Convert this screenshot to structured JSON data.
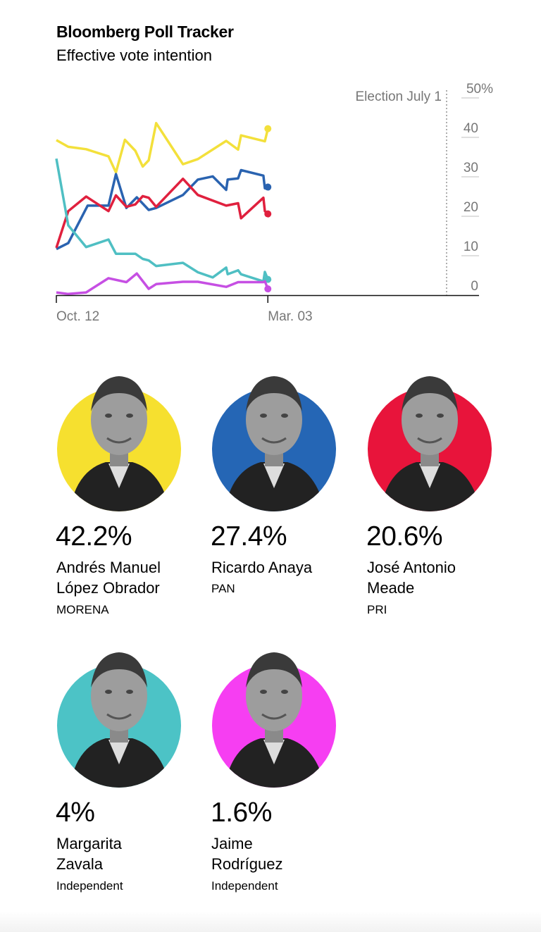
{
  "header": {
    "title": "Bloomberg Poll Tracker",
    "subtitle": "Effective vote intention"
  },
  "chart_data": {
    "type": "line",
    "title": "Bloomberg Poll Tracker",
    "subtitle": "Effective vote intention",
    "xlabel": "",
    "ylabel": "",
    "x_tick_labels": [
      "Oct. 12",
      "Mar. 03"
    ],
    "x_ticks": [
      "2017-10-12",
      "2018-03-03"
    ],
    "xlim": [
      "2017-10-12",
      "2018-07-01"
    ],
    "y_tick_labels": [
      "0",
      "10",
      "20",
      "30",
      "40",
      "50%"
    ],
    "ylim": [
      0,
      50
    ],
    "grid": false,
    "annotation": {
      "label": "Election July 1",
      "date": "2018-07-01"
    },
    "series": [
      {
        "color": "#f3e03b",
        "points": [
          [
            "2017-10-12",
            39.3
          ],
          [
            "2017-10-20",
            37.6
          ],
          [
            "2017-11-01",
            37.0
          ],
          [
            "2017-11-16",
            35.2
          ],
          [
            "2017-11-21",
            31.1
          ],
          [
            "2017-11-27",
            39.4
          ],
          [
            "2017-12-04",
            36.6
          ],
          [
            "2017-12-09",
            32.6
          ],
          [
            "2017-12-13",
            34.2
          ],
          [
            "2017-12-18",
            43.6
          ],
          [
            "2018-01-05",
            33.2
          ],
          [
            "2018-01-15",
            34.5
          ],
          [
            "2018-02-03",
            39.1
          ],
          [
            "2018-02-11",
            36.9
          ],
          [
            "2018-02-13",
            40.5
          ],
          [
            "2018-03-01",
            39.0
          ],
          [
            "2018-03-03",
            42.2
          ]
        ]
      },
      {
        "color": "#2a63b0",
        "points": [
          [
            "2017-10-12",
            11.7
          ],
          [
            "2017-10-20",
            13.2
          ],
          [
            "2017-11-02",
            22.7
          ],
          [
            "2017-11-16",
            22.7
          ],
          [
            "2017-11-21",
            30.7
          ],
          [
            "2017-11-28",
            22.1
          ],
          [
            "2017-12-05",
            24.8
          ],
          [
            "2017-12-13",
            21.6
          ],
          [
            "2017-12-18",
            22.1
          ],
          [
            "2018-01-05",
            25.4
          ],
          [
            "2018-01-15",
            29.3
          ],
          [
            "2018-01-25",
            30.1
          ],
          [
            "2018-02-03",
            26.7
          ],
          [
            "2018-02-04",
            29.3
          ],
          [
            "2018-02-11",
            29.6
          ],
          [
            "2018-02-13",
            31.7
          ],
          [
            "2018-02-28",
            30.3
          ],
          [
            "2018-03-01",
            27.1
          ],
          [
            "2018-03-03",
            27.4
          ]
        ]
      },
      {
        "color": "#e0203e",
        "points": [
          [
            "2017-10-12",
            12.0
          ],
          [
            "2017-10-20",
            21.3
          ],
          [
            "2017-11-01",
            25.0
          ],
          [
            "2017-11-16",
            21.3
          ],
          [
            "2017-11-21",
            25.3
          ],
          [
            "2017-11-28",
            22.4
          ],
          [
            "2017-12-04",
            23.0
          ],
          [
            "2017-12-09",
            25.1
          ],
          [
            "2017-12-13",
            24.7
          ],
          [
            "2017-12-18",
            22.4
          ],
          [
            "2018-01-05",
            29.5
          ],
          [
            "2018-01-15",
            25.4
          ],
          [
            "2018-02-03",
            22.7
          ],
          [
            "2018-02-11",
            23.3
          ],
          [
            "2018-02-13",
            19.5
          ],
          [
            "2018-02-28",
            24.7
          ],
          [
            "2018-03-01",
            21.3
          ],
          [
            "2018-03-03",
            20.6
          ]
        ]
      },
      {
        "color": "#4fbfc3",
        "points": [
          [
            "2017-10-12",
            34.6
          ],
          [
            "2017-10-20",
            17.7
          ],
          [
            "2017-11-01",
            12.2
          ],
          [
            "2017-11-16",
            14.1
          ],
          [
            "2017-11-21",
            10.5
          ],
          [
            "2017-12-04",
            10.5
          ],
          [
            "2017-12-09",
            9.2
          ],
          [
            "2017-12-13",
            8.8
          ],
          [
            "2017-12-18",
            7.4
          ],
          [
            "2018-01-05",
            8.2
          ],
          [
            "2018-01-15",
            5.8
          ],
          [
            "2018-01-25",
            4.5
          ],
          [
            "2018-02-03",
            7.0
          ],
          [
            "2018-02-04",
            5.3
          ],
          [
            "2018-02-11",
            6.3
          ],
          [
            "2018-02-13",
            5.3
          ],
          [
            "2018-02-28",
            3.5
          ],
          [
            "2018-03-01",
            5.9
          ],
          [
            "2018-03-03",
            4.0
          ]
        ]
      },
      {
        "color": "#c64fe3",
        "points": [
          [
            "2017-10-12",
            0.7
          ],
          [
            "2017-10-20",
            0.3
          ],
          [
            "2017-11-01",
            0.7
          ],
          [
            "2017-11-16",
            4.3
          ],
          [
            "2017-11-28",
            3.3
          ],
          [
            "2017-12-05",
            5.5
          ],
          [
            "2017-12-13",
            1.6
          ],
          [
            "2017-12-18",
            2.8
          ],
          [
            "2018-01-05",
            3.4
          ],
          [
            "2018-01-15",
            3.4
          ],
          [
            "2018-02-03",
            2.1
          ],
          [
            "2018-02-11",
            3.3
          ],
          [
            "2018-02-28",
            3.3
          ],
          [
            "2018-03-01",
            3.5
          ],
          [
            "2018-03-03",
            1.6
          ]
        ]
      }
    ]
  },
  "candidates": [
    {
      "pct": "42.2%",
      "name_line1": "Andrés Manuel",
      "name_line2": "López Obrador",
      "party": "MORENA",
      "color": "#f6e02f"
    },
    {
      "pct": "27.4%",
      "name_line1": "Ricardo Anaya",
      "name_line2": "",
      "party": "PAN",
      "color": "#2566b5"
    },
    {
      "pct": "20.6%",
      "name_line1": "José Antonio",
      "name_line2": "Meade",
      "party": "PRI",
      "color": "#e8143b"
    },
    {
      "pct": "4%",
      "name_line1": "Margarita",
      "name_line2": "Zavala",
      "party": "Independent",
      "color": "#4cc3c6"
    },
    {
      "pct": "1.6%",
      "name_line1": "Jaime",
      "name_line2": "Rodríguez",
      "party": "Independent",
      "color": "#f63ef2"
    }
  ]
}
